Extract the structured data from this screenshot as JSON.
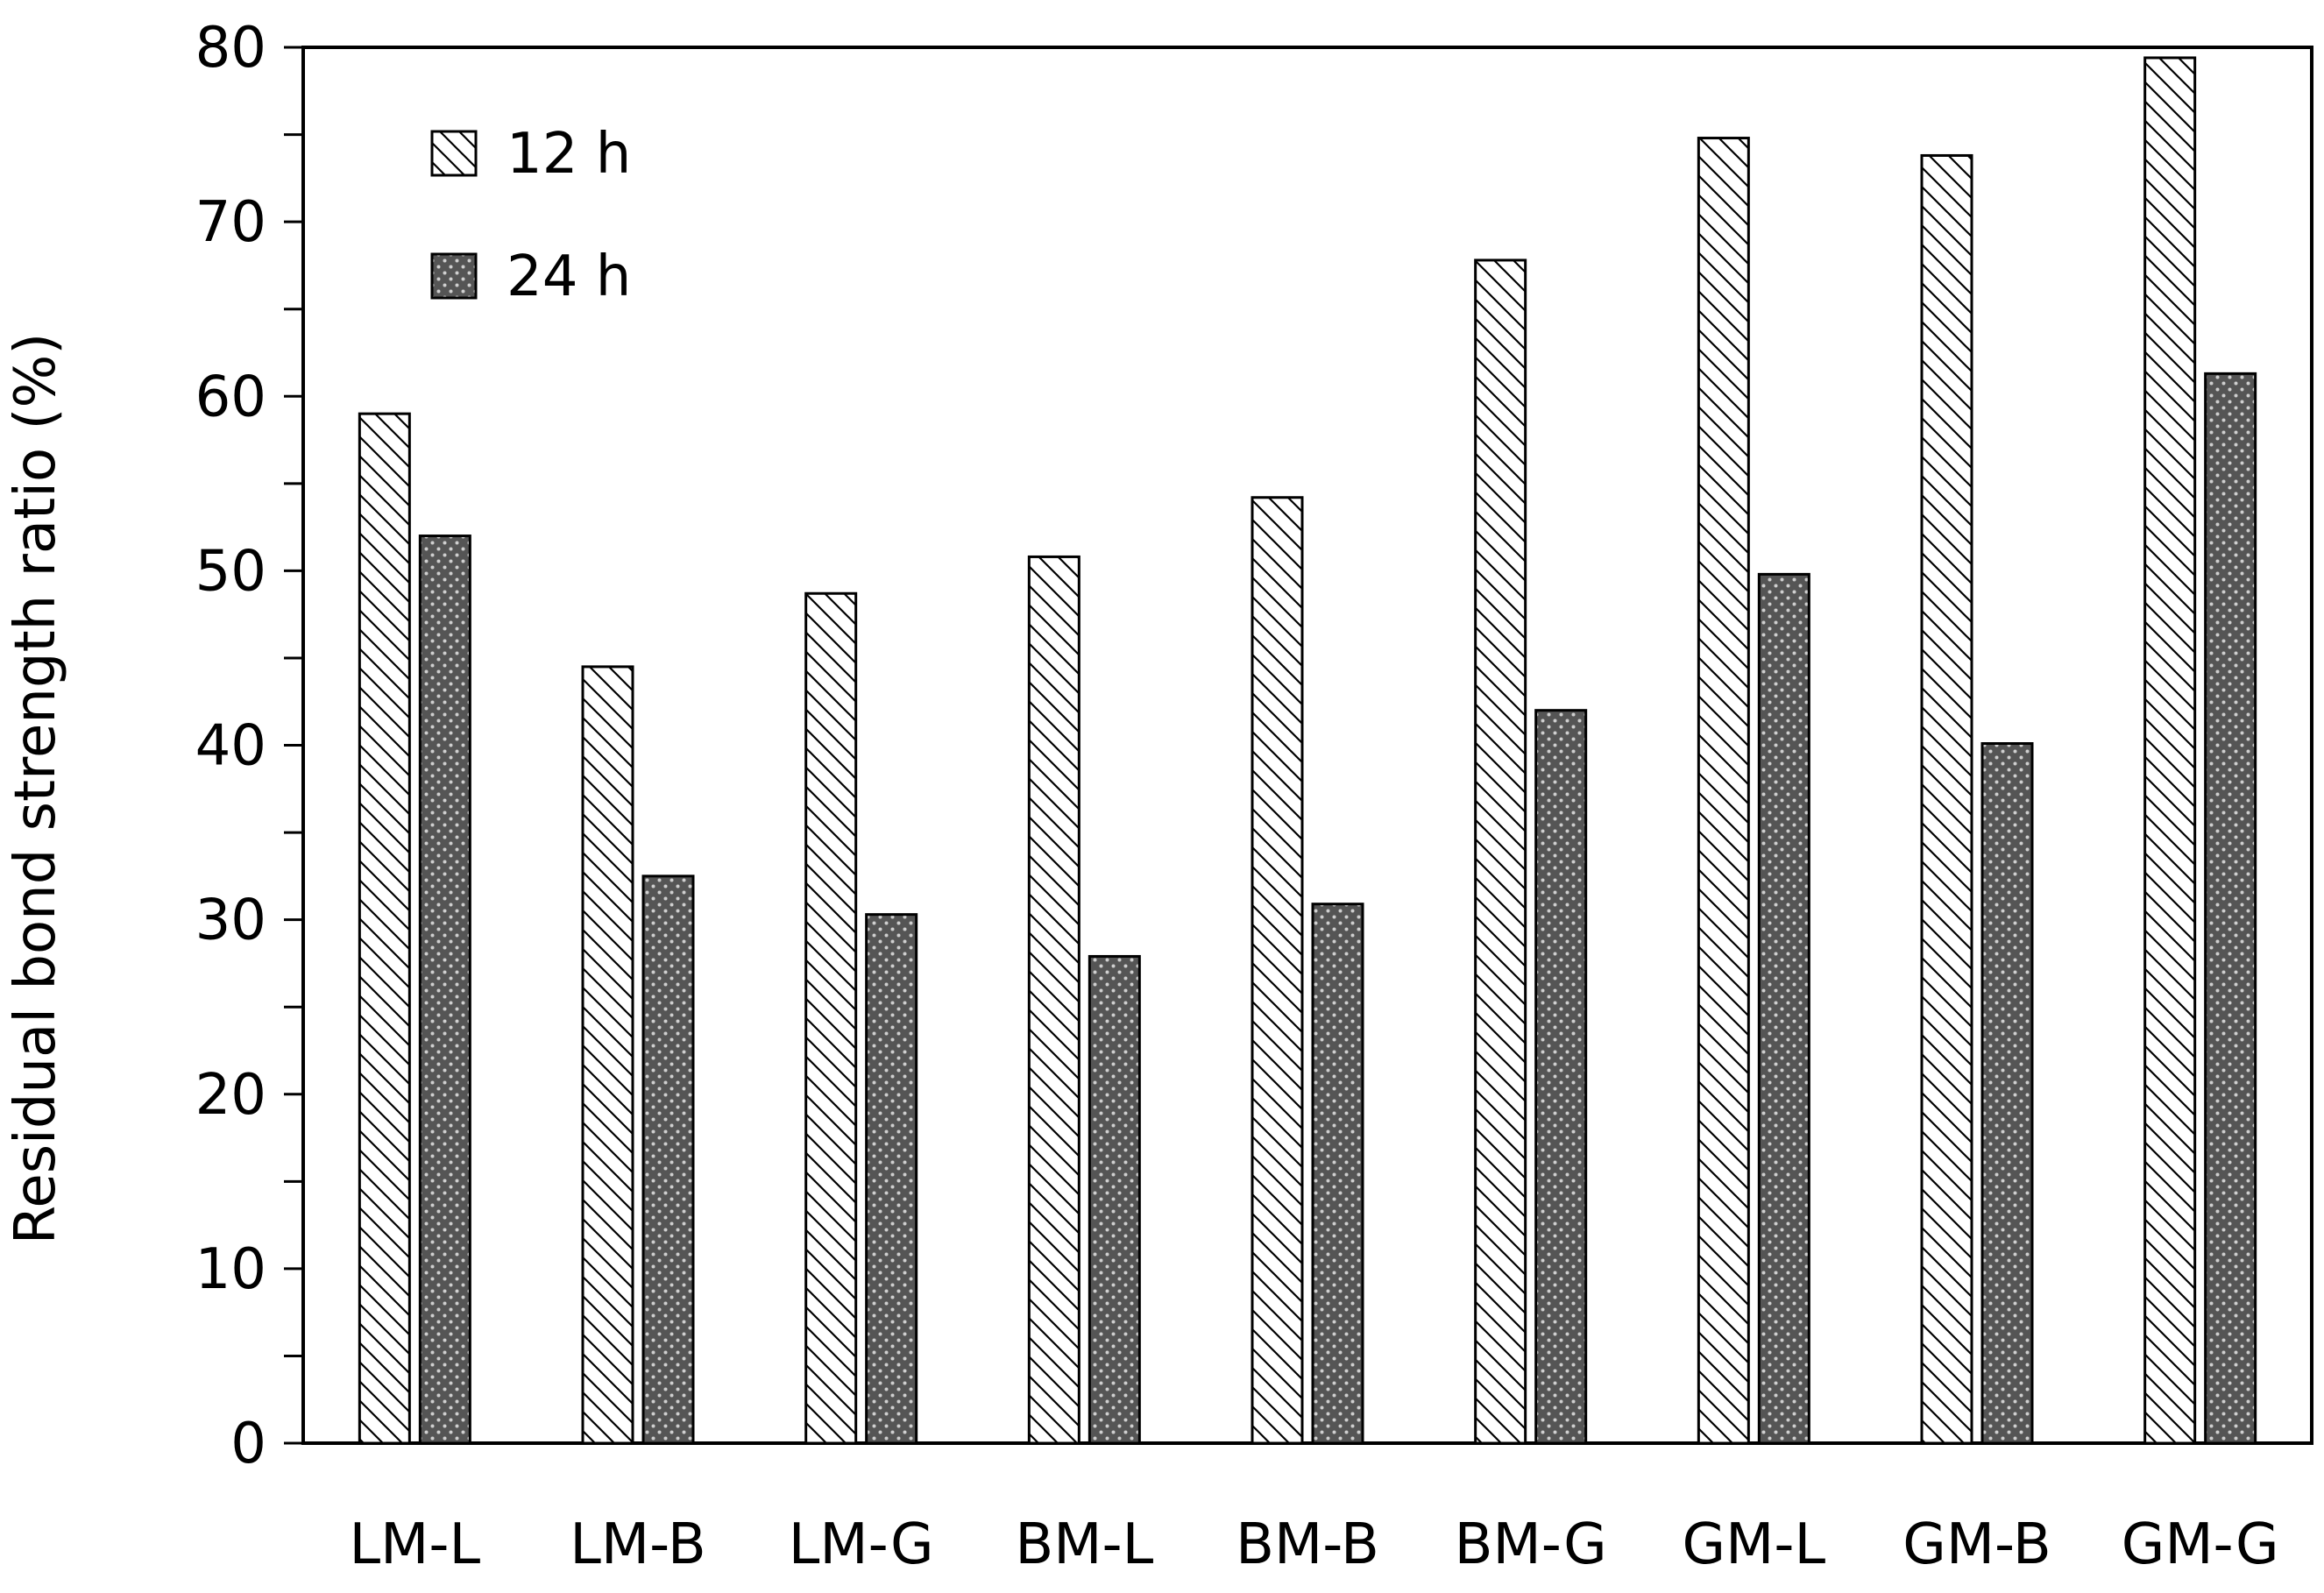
{
  "chart_data": {
    "type": "bar",
    "title": "",
    "xlabel": "",
    "ylabel": "Residual bond strength ratio (%)",
    "ylim": [
      0,
      80
    ],
    "yticks": [
      0,
      10,
      20,
      30,
      40,
      50,
      60,
      70,
      80
    ],
    "grid": false,
    "legend_position": "top-left",
    "categories": [
      "LM-L",
      "LM-B",
      "LM-G",
      "BM-L",
      "BM-B",
      "BM-G",
      "GM-L",
      "GM-B",
      "GM-G"
    ],
    "series": [
      {
        "name": "12 h",
        "pattern": "diagonal-hatch",
        "values": [
          59.0,
          44.5,
          48.7,
          50.8,
          54.2,
          67.8,
          74.8,
          73.8,
          79.4
        ]
      },
      {
        "name": "24 h",
        "pattern": "dotted-dark",
        "values": [
          52.0,
          32.5,
          30.3,
          27.9,
          30.9,
          42.0,
          49.8,
          40.1,
          61.3
        ]
      }
    ]
  }
}
